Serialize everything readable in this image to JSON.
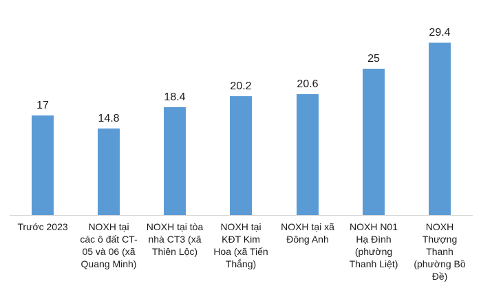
{
  "chart_data": {
    "type": "bar",
    "title": "",
    "xlabel": "",
    "ylabel": "",
    "categories": [
      "Trước 2023",
      "NOXH tại\ncác ô đất CT-\n05 và 06 (xã\nQuang Minh)",
      "NOXH tại tòa\nnhà CT3 (xã\nThiên Lộc)",
      "NOXH tại\nKĐT Kim\nHoa (xã Tiến\nThắng)",
      "NOXH tại xã\nĐông Anh",
      "NOXH N01\nHạ Đình\n(phường\nThanh Liệt)",
      "NOXH\nThượng\nThanh\n(phường Bồ\nĐề)"
    ],
    "values": [
      17,
      14.8,
      18.4,
      20.2,
      20.6,
      25,
      29.4
    ],
    "data_labels": [
      "17",
      "14.8",
      "18.4",
      "20.2",
      "20.6",
      "25",
      "29.4"
    ],
    "ylim": [
      0,
      36.6
    ],
    "y_axis_visible": false,
    "gridlines": false,
    "legend": "none",
    "bar_color": "#5b9bd5",
    "axis_line_color": "#d9d9d9",
    "label_color": "#1a1a1a"
  }
}
